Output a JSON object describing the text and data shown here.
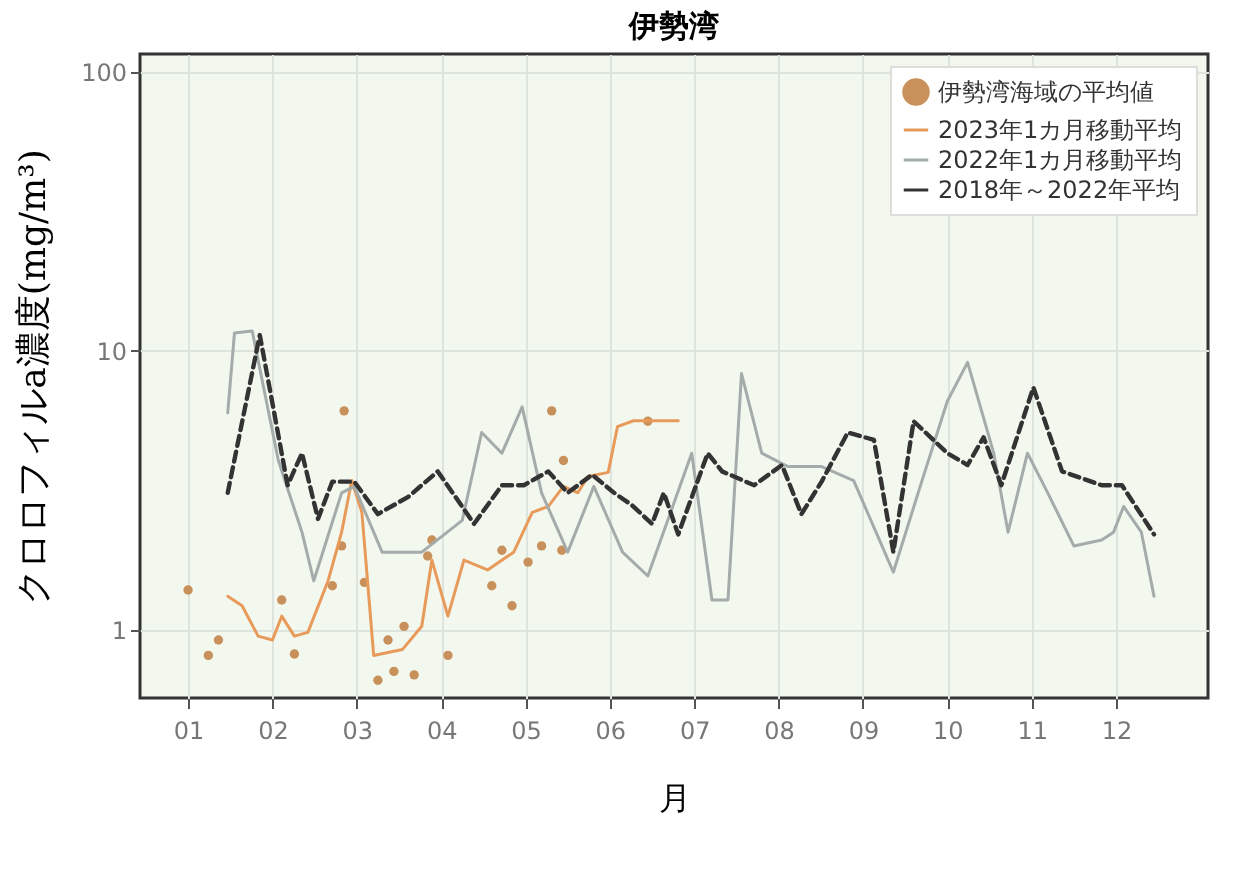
{
  "chart_data": {
    "type": "line",
    "title": "伊勢湾",
    "xlabel": "月",
    "ylabel": "クロロフィルa濃度(mg/m³)",
    "log": "y",
    "grid": true,
    "legend": "top right",
    "xlim": [
      0.43,
      13.09
    ],
    "ylim": [
      0.57,
      116
    ],
    "xticks": [
      {
        "value": 1,
        "label": "01"
      },
      {
        "value": 2,
        "label": "02"
      },
      {
        "value": 3,
        "label": "03"
      },
      {
        "value": 4,
        "label": "04"
      },
      {
        "value": 5,
        "label": "05"
      },
      {
        "value": 6,
        "label": "06"
      },
      {
        "value": 7,
        "label": "07"
      },
      {
        "value": 8,
        "label": "08"
      },
      {
        "value": 9,
        "label": "09"
      },
      {
        "value": 10,
        "label": "10"
      },
      {
        "value": 11,
        "label": "11"
      },
      {
        "value": 12,
        "label": "12"
      }
    ],
    "yticks": [
      1,
      10,
      100
    ],
    "series": [
      {
        "name": "伊勢湾海域の平均値",
        "type": "scatter",
        "marker": "circle",
        "color": "#c8905a",
        "x": [
          1.0,
          1.24,
          1.36,
          2.11,
          2.26,
          2.71,
          2.82,
          2.85,
          3.09,
          3.25,
          3.37,
          3.44,
          3.56,
          3.68,
          3.84,
          3.89,
          4.08,
          4.6,
          4.72,
          4.84,
          5.03,
          5.19,
          5.31,
          5.43,
          5.45,
          6.45
        ],
        "values": [
          1.39,
          0.81,
          0.92,
          1.28,
          0.82,
          1.44,
          2.0,
          6.1,
          1.48,
          0.66,
          0.92,
          0.71,
          1.03,
          0.69,
          1.84,
          2.1,
          0.81,
          1.44,
          1.93,
          1.22,
          1.75,
          2.0,
          6.1,
          1.93,
          4.05,
          5.6
        ]
      },
      {
        "name": "2023年1カ月移動平均",
        "color": "#e89a5a",
        "line_style": "solid",
        "x": [
          1.47,
          1.64,
          1.83,
          2.0,
          2.11,
          2.26,
          2.42,
          2.66,
          2.82,
          2.94,
          3.06,
          3.2,
          3.54,
          3.77,
          3.89,
          4.08,
          4.27,
          4.55,
          4.86,
          5.08,
          5.27,
          5.45,
          5.62,
          5.74,
          5.98,
          6.09,
          6.28,
          6.81
        ],
        "values": [
          1.32,
          1.22,
          0.95,
          0.92,
          1.12,
          0.95,
          0.98,
          1.5,
          2.24,
          3.43,
          2.64,
          0.81,
          0.85,
          1.03,
          1.78,
          1.12,
          1.78,
          1.64,
          1.9,
          2.64,
          2.77,
          3.27,
          3.1,
          3.55,
          3.67,
          5.35,
          5.62,
          5.62
        ]
      },
      {
        "name": "2022年1カ月移動平均",
        "color": "#a3abab",
        "line_style": "solid",
        "x": [
          1.47,
          1.55,
          1.76,
          2.07,
          2.35,
          2.49,
          2.82,
          2.97,
          3.3,
          3.77,
          4.25,
          4.48,
          4.72,
          4.96,
          5.19,
          5.5,
          5.81,
          6.15,
          6.45,
          6.97,
          7.21,
          7.4,
          7.56,
          7.8,
          8.11,
          8.51,
          8.89,
          9.36,
          9.7,
          10.0,
          10.24,
          10.55,
          10.72,
          10.95,
          11.19,
          11.5,
          11.83,
          11.97,
          12.09,
          12.3,
          12.45
        ],
        "values": [
          6.0,
          11.6,
          11.8,
          4.05,
          2.24,
          1.5,
          3.1,
          3.27,
          1.9,
          1.9,
          2.47,
          5.1,
          4.3,
          6.3,
          3.1,
          1.9,
          3.27,
          1.9,
          1.56,
          4.3,
          1.28,
          1.28,
          8.3,
          4.3,
          3.85,
          3.85,
          3.43,
          1.61,
          3.43,
          6.6,
          9.1,
          4.3,
          2.24,
          4.3,
          3.1,
          2.0,
          2.1,
          2.24,
          2.77,
          2.24,
          1.32
        ]
      },
      {
        "name": "2018年～2022年平均",
        "color": "#333333",
        "line_style": "dashed",
        "x": [
          1.47,
          1.85,
          2.18,
          2.35,
          2.54,
          2.71,
          2.97,
          3.25,
          3.61,
          3.96,
          4.39,
          4.72,
          4.98,
          5.27,
          5.5,
          5.79,
          6.05,
          6.26,
          6.5,
          6.64,
          6.81,
          7.16,
          7.33,
          7.71,
          8.04,
          8.27,
          8.51,
          8.82,
          9.13,
          9.36,
          9.6,
          10.0,
          10.24,
          10.43,
          10.64,
          11.02,
          11.36,
          11.83,
          12.07,
          12.45
        ],
        "values": [
          3.1,
          11.4,
          3.3,
          4.3,
          2.5,
          3.4,
          3.4,
          2.6,
          3.0,
          3.7,
          2.4,
          3.3,
          3.3,
          3.7,
          3.1,
          3.6,
          3.1,
          2.8,
          2.4,
          3.1,
          2.2,
          4.3,
          3.7,
          3.3,
          3.9,
          2.6,
          3.4,
          5.1,
          4.8,
          1.9,
          5.6,
          4.3,
          3.9,
          4.9,
          3.3,
          7.4,
          3.7,
          3.3,
          3.3,
          2.2
        ]
      }
    ]
  }
}
